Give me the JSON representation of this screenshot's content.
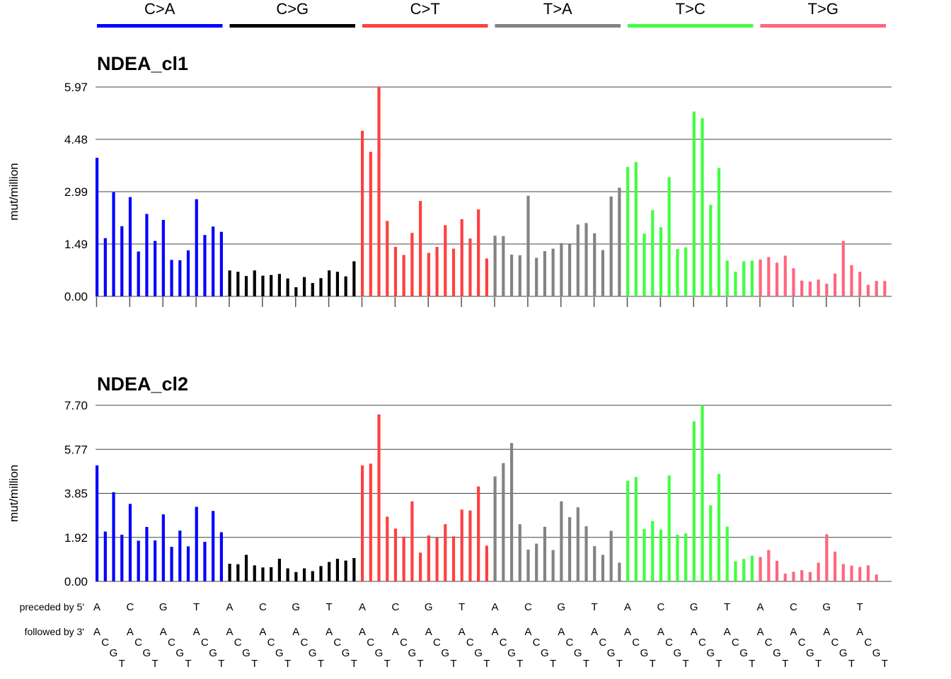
{
  "categories": [
    {
      "label": "C>A",
      "color": "#0000ff"
    },
    {
      "label": "C>G",
      "color": "#000000"
    },
    {
      "label": "C>T",
      "color": "#ff4040"
    },
    {
      "label": "T>A",
      "color": "#838383"
    },
    {
      "label": "T>C",
      "color": "#40ff40"
    },
    {
      "label": "T>G",
      "color": "#ff667f"
    }
  ],
  "chart_data": [
    {
      "type": "bar",
      "title": "NDEA_cl1",
      "ylabel": "mut/million",
      "ylim": [
        0,
        5.97
      ],
      "yticks": [
        "0.00",
        "1.49",
        "2.99",
        "4.48",
        "5.97"
      ],
      "values": [
        3.95,
        1.66,
        2.97,
        2.0,
        2.83,
        1.28,
        2.35,
        1.58,
        2.18,
        1.04,
        1.03,
        1.31,
        2.77,
        1.75,
        1.99,
        1.84,
        0.74,
        0.7,
        0.58,
        0.74,
        0.59,
        0.61,
        0.64,
        0.51,
        0.26,
        0.55,
        0.38,
        0.52,
        0.74,
        0.7,
        0.57,
        1.0,
        4.72,
        4.12,
        5.97,
        2.15,
        1.41,
        1.18,
        1.81,
        2.72,
        1.24,
        1.41,
        2.03,
        1.36,
        2.2,
        1.65,
        2.48,
        1.08,
        1.73,
        1.72,
        1.19,
        1.17,
        2.87,
        1.1,
        1.29,
        1.36,
        1.52,
        1.48,
        2.05,
        2.09,
        1.8,
        1.32,
        2.85,
        3.1,
        3.69,
        3.83,
        1.79,
        2.46,
        1.97,
        3.4,
        1.35,
        1.4,
        5.27,
        5.08,
        2.61,
        3.66,
        1.02,
        0.7,
        1.0,
        1.02,
        1.05,
        1.12,
        0.96,
        1.16,
        0.8,
        0.45,
        0.42,
        0.48,
        0.36,
        0.65,
        1.58,
        0.89,
        0.7,
        0.33,
        0.44,
        0.44
      ]
    },
    {
      "type": "bar",
      "title": "NDEA_cl2",
      "ylabel": "mut/million",
      "ylim": [
        0,
        7.7
      ],
      "yticks": [
        "0.00",
        "1.92",
        "3.85",
        "5.77",
        "7.70"
      ],
      "values": [
        5.07,
        2.18,
        3.9,
        2.04,
        3.39,
        1.78,
        2.38,
        1.79,
        2.93,
        1.51,
        2.22,
        1.53,
        3.26,
        1.73,
        3.08,
        2.15,
        0.77,
        0.75,
        1.16,
        0.7,
        0.61,
        0.62,
        0.99,
        0.57,
        0.41,
        0.57,
        0.45,
        0.67,
        0.85,
        0.99,
        0.91,
        1.02,
        5.07,
        5.15,
        7.3,
        2.83,
        2.31,
        1.96,
        3.5,
        1.26,
        2.01,
        1.91,
        2.5,
        1.97,
        3.14,
        3.1,
        4.15,
        1.56,
        4.59,
        5.17,
        6.05,
        2.5,
        1.39,
        1.65,
        2.39,
        1.37,
        3.5,
        2.81,
        3.24,
        2.41,
        1.54,
        1.16,
        2.21,
        0.82,
        4.4,
        4.56,
        2.29,
        2.64,
        2.26,
        4.63,
        2.04,
        2.1,
        7.0,
        7.7,
        3.33,
        4.7,
        2.39,
        0.88,
        0.98,
        1.12,
        1.07,
        1.37,
        0.9,
        0.34,
        0.42,
        0.49,
        0.41,
        0.82,
        2.06,
        1.3,
        0.76,
        0.69,
        0.63,
        0.7,
        0.3,
        0.0
      ]
    }
  ],
  "context": {
    "preceded_label": "preceded by 5'",
    "followed_label": "followed by 3'",
    "bases": [
      "A",
      "C",
      "G",
      "T"
    ]
  }
}
